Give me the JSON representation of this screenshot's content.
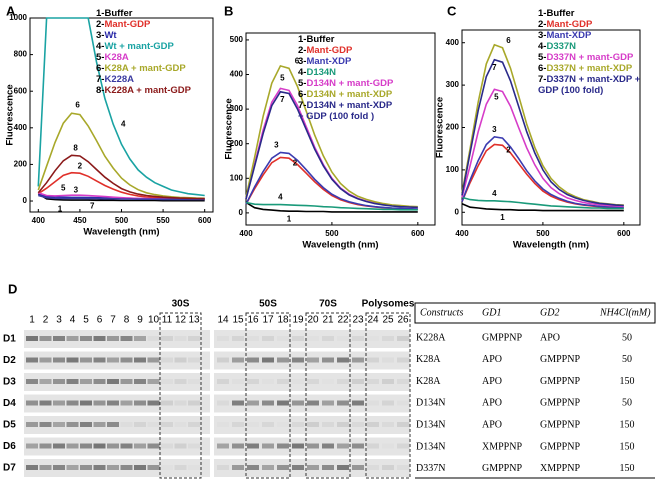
{
  "chart_data": [
    {
      "type": "line",
      "panel": "A",
      "xlabel": "Wavelength (nm)",
      "ylabel": "Fluorescence",
      "x": [
        400,
        410,
        420,
        430,
        440,
        450,
        460,
        470,
        480,
        490,
        500,
        510,
        520,
        530,
        540,
        550,
        560,
        570,
        580,
        590,
        600
      ],
      "xlim": [
        390,
        610
      ],
      "xticks": [
        400,
        450,
        500,
        550,
        600
      ],
      "ylim": [
        -60,
        1000
      ],
      "yticks": [
        0,
        200,
        400,
        600,
        800,
        1000
      ],
      "series": [
        {
          "key": "1-",
          "name": "Buffer",
          "label": "1",
          "color": "#000000",
          "values": [
            40,
            12,
            8,
            6,
            5,
            5,
            5,
            4,
            4,
            4,
            3,
            3,
            3,
            3,
            3,
            2,
            2,
            2,
            2,
            2,
            2
          ]
        },
        {
          "key": "2-",
          "name": "Mant-GDP",
          "label": "2",
          "color": "#e0302a",
          "values": [
            40,
            70,
            105,
            140,
            155,
            152,
            135,
            110,
            85,
            65,
            48,
            36,
            28,
            22,
            19,
            16,
            14,
            13,
            12,
            11,
            10
          ]
        },
        {
          "key": "3-",
          "name": "Wt",
          "label": "3",
          "color": "#2a2aa8",
          "values": [
            35,
            25,
            22,
            21,
            20,
            20,
            19,
            18,
            17,
            16,
            15,
            14,
            13,
            12,
            12,
            11,
            11,
            10,
            10,
            10,
            10
          ]
        },
        {
          "key": "4-",
          "name": "Wt + mant-GDP",
          "label": "4",
          "color": "#1aa3a3",
          "values": [
            80,
            1000,
            1000,
            1000,
            1000,
            1000,
            1000,
            760,
            560,
            420,
            310,
            230,
            170,
            130,
            100,
            80,
            60,
            50,
            40,
            35,
            30
          ]
        },
        {
          "key": "5-",
          "name": "K28A",
          "label": "5",
          "color": "#d63cc8",
          "values": [
            45,
            30,
            28,
            30,
            32,
            32,
            30,
            27,
            24,
            21,
            18,
            16,
            14,
            13,
            12,
            11,
            11,
            10,
            10,
            10,
            10
          ]
        },
        {
          "key": "6-",
          "name": "K28A + mant-GDP",
          "label": "6",
          "color": "#a8a82a",
          "values": [
            60,
            190,
            320,
            425,
            480,
            472,
            410,
            330,
            245,
            180,
            125,
            88,
            62,
            45,
            35,
            28,
            23,
            20,
            18,
            16,
            15
          ]
        },
        {
          "key": "7-",
          "name": "K228A",
          "label": "7",
          "color": "#3a3aa0",
          "values": [
            30,
            18,
            15,
            14,
            14,
            14,
            13,
            13,
            12,
            12,
            11,
            11,
            10,
            10,
            10,
            9,
            9,
            9,
            9,
            9,
            9
          ]
        },
        {
          "key": "8-",
          "name": "K228A + mant-GDP",
          "label": "8",
          "color": "#8b1a1a",
          "values": [
            45,
            100,
            165,
            220,
            250,
            246,
            215,
            172,
            130,
            96,
            68,
            50,
            38,
            30,
            25,
            21,
            18,
            16,
            15,
            14,
            13
          ]
        }
      ]
    },
    {
      "type": "line",
      "panel": "B",
      "xlabel": "Wavelength (nm)",
      "ylabel": "Fluorescence",
      "x": [
        400,
        410,
        420,
        430,
        440,
        450,
        460,
        470,
        480,
        490,
        500,
        510,
        520,
        530,
        540,
        550,
        560,
        570,
        580,
        590,
        600
      ],
      "xlim": [
        400,
        620
      ],
      "xticks": [
        400,
        500,
        600
      ],
      "ylim": [
        -35,
        520
      ],
      "yticks": [
        0,
        100,
        200,
        300,
        400,
        500
      ],
      "series": [
        {
          "key": "1-",
          "name": "Buffer",
          "label": "1",
          "color": "#000000",
          "values": [
            30,
            15,
            10,
            8,
            6,
            5,
            5,
            4,
            4,
            4,
            3,
            3,
            3,
            3,
            3,
            3,
            3,
            3,
            3,
            3,
            3
          ]
        },
        {
          "key": "2-",
          "name": "Mant-GDP",
          "label": "2",
          "color": "#e0302a",
          "values": [
            25,
            70,
            110,
            145,
            160,
            158,
            140,
            115,
            90,
            68,
            50,
            38,
            30,
            24,
            20,
            17,
            15,
            13,
            12,
            11,
            10
          ]
        },
        {
          "key": "3-",
          "name": "Mant-XDP",
          "label": "3",
          "color": "#3b3bb0",
          "values": [
            25,
            75,
            120,
            158,
            175,
            172,
            152,
            125,
            97,
            73,
            54,
            41,
            32,
            26,
            21,
            18,
            16,
            14,
            13,
            12,
            11
          ]
        },
        {
          "key": "4-",
          "name": "D134N",
          "label": "4",
          "color": "#1a9a7a",
          "values": [
            30,
            25,
            24,
            24,
            24,
            23,
            22,
            21,
            20,
            18,
            17,
            15,
            14,
            13,
            12,
            11,
            10,
            10,
            9,
            9,
            9
          ]
        },
        {
          "key": "5-",
          "name": "D134N + mant-GDP",
          "label": "5",
          "color": "#d63cc8",
          "values": [
            40,
            140,
            240,
            320,
            360,
            354,
            310,
            250,
            190,
            140,
            100,
            72,
            54,
            42,
            34,
            28,
            24,
            21,
            19,
            17,
            16
          ]
        },
        {
          "key": "6-",
          "name": "D134N + mant-XDP",
          "label": "6",
          "color": "#a8a82a",
          "values": [
            45,
            160,
            280,
            375,
            425,
            418,
            365,
            295,
            225,
            165,
            118,
            85,
            63,
            48,
            39,
            32,
            27,
            23,
            21,
            19,
            18
          ]
        },
        {
          "key": "7-",
          "name": "D134N + mant-XDP + GDP (100 fold )",
          "label": "7",
          "color": "#2a2a8a",
          "values": [
            40,
            135,
            230,
            310,
            350,
            345,
            300,
            242,
            184,
            136,
            97,
            70,
            52,
            41,
            33,
            27,
            23,
            20,
            18,
            17,
            16
          ]
        }
      ]
    },
    {
      "type": "line",
      "panel": "C",
      "xlabel": "Wavelength (nm)",
      "ylabel": "Fluorescence",
      "x": [
        400,
        410,
        420,
        430,
        440,
        450,
        460,
        470,
        480,
        490,
        500,
        510,
        520,
        530,
        540,
        550,
        560,
        570,
        580,
        590,
        600
      ],
      "xlim": [
        400,
        620
      ],
      "xticks": [
        400,
        500,
        600
      ],
      "ylim": [
        -30,
        430
      ],
      "yticks": [
        0,
        100,
        200,
        300,
        400
      ],
      "series": [
        {
          "key": "1-",
          "name": "Buffer",
          "label": "1",
          "color": "#000000",
          "values": [
            20,
            12,
            10,
            8,
            7,
            6,
            6,
            5,
            5,
            5,
            4,
            4,
            4,
            4,
            4,
            4,
            4,
            4,
            4,
            4,
            4
          ]
        },
        {
          "key": "2-",
          "name": "Mant-GDP",
          "label": "2",
          "color": "#e0302a",
          "values": [
            25,
            70,
            110,
            145,
            160,
            158,
            140,
            115,
            90,
            68,
            50,
            38,
            30,
            24,
            20,
            17,
            15,
            13,
            12,
            11,
            10
          ]
        },
        {
          "key": "3-",
          "name": "Mant-XDP",
          "label": "3",
          "color": "#3b3bb0",
          "values": [
            25,
            76,
            122,
            160,
            178,
            175,
            154,
            127,
            98,
            74,
            55,
            42,
            33,
            26,
            21,
            18,
            16,
            14,
            13,
            12,
            11
          ]
        },
        {
          "key": "4-",
          "name": "D337N",
          "label": "4",
          "color": "#1a9a7a",
          "values": [
            35,
            30,
            28,
            27,
            27,
            26,
            25,
            23,
            21,
            19,
            17,
            15,
            14,
            13,
            12,
            11,
            10,
            10,
            9,
            9,
            9
          ]
        },
        {
          "key": "5-",
          "name": "D337N + mant-GDP",
          "label": "5",
          "color": "#d63cc8",
          "values": [
            35,
            110,
            190,
            255,
            290,
            285,
            250,
            200,
            152,
            112,
            80,
            58,
            44,
            34,
            28,
            23,
            20,
            18,
            16,
            15,
            14
          ]
        },
        {
          "key": "6-",
          "name": "D337N + mant-XDP",
          "label": "6",
          "color": "#a8a82a",
          "values": [
            45,
            150,
            260,
            350,
            395,
            388,
            340,
            275,
            208,
            153,
            110,
            80,
            60,
            46,
            37,
            30,
            26,
            22,
            20,
            18,
            17
          ]
        },
        {
          "key": "7-",
          "name": "D337N + mant-XDP + GDP (100 fold)",
          "label": "7",
          "color": "#2a2a8a",
          "values": [
            40,
            140,
            240,
            320,
            360,
            354,
            310,
            250,
            190,
            140,
            100,
            72,
            54,
            42,
            34,
            28,
            24,
            21,
            19,
            17,
            16
          ]
        }
      ]
    }
  ],
  "gel": {
    "panel": "D",
    "lanes": [
      1,
      2,
      3,
      4,
      5,
      6,
      7,
      8,
      9,
      10,
      11,
      12,
      13,
      14,
      15,
      16,
      17,
      18,
      19,
      20,
      21,
      22,
      23,
      24,
      25,
      26
    ],
    "rows": [
      "D1",
      "D2",
      "D3",
      "D4",
      "D5",
      "D6",
      "D7"
    ],
    "fractions": [
      "30S",
      "50S",
      "70S",
      "Polysomes"
    ]
  },
  "table": {
    "header": [
      "Constructs",
      "GD1",
      "GD2",
      "NH4Cl(mM)"
    ],
    "rows": [
      [
        "K228A",
        "GMPPNP",
        "APO",
        50
      ],
      [
        "K28A",
        "APO",
        "GMPPNP",
        50
      ],
      [
        "K28A",
        "APO",
        "GMPPNP",
        150
      ],
      [
        "D134N",
        "APO",
        "GMPPNP",
        50
      ],
      [
        "D134N",
        "APO",
        "GMPPNP",
        150
      ],
      [
        "D134N",
        "XMPPNP",
        "GMPPNP",
        150
      ],
      [
        "D337N",
        "GMPPNP",
        "XMPPNP",
        150
      ]
    ]
  }
}
